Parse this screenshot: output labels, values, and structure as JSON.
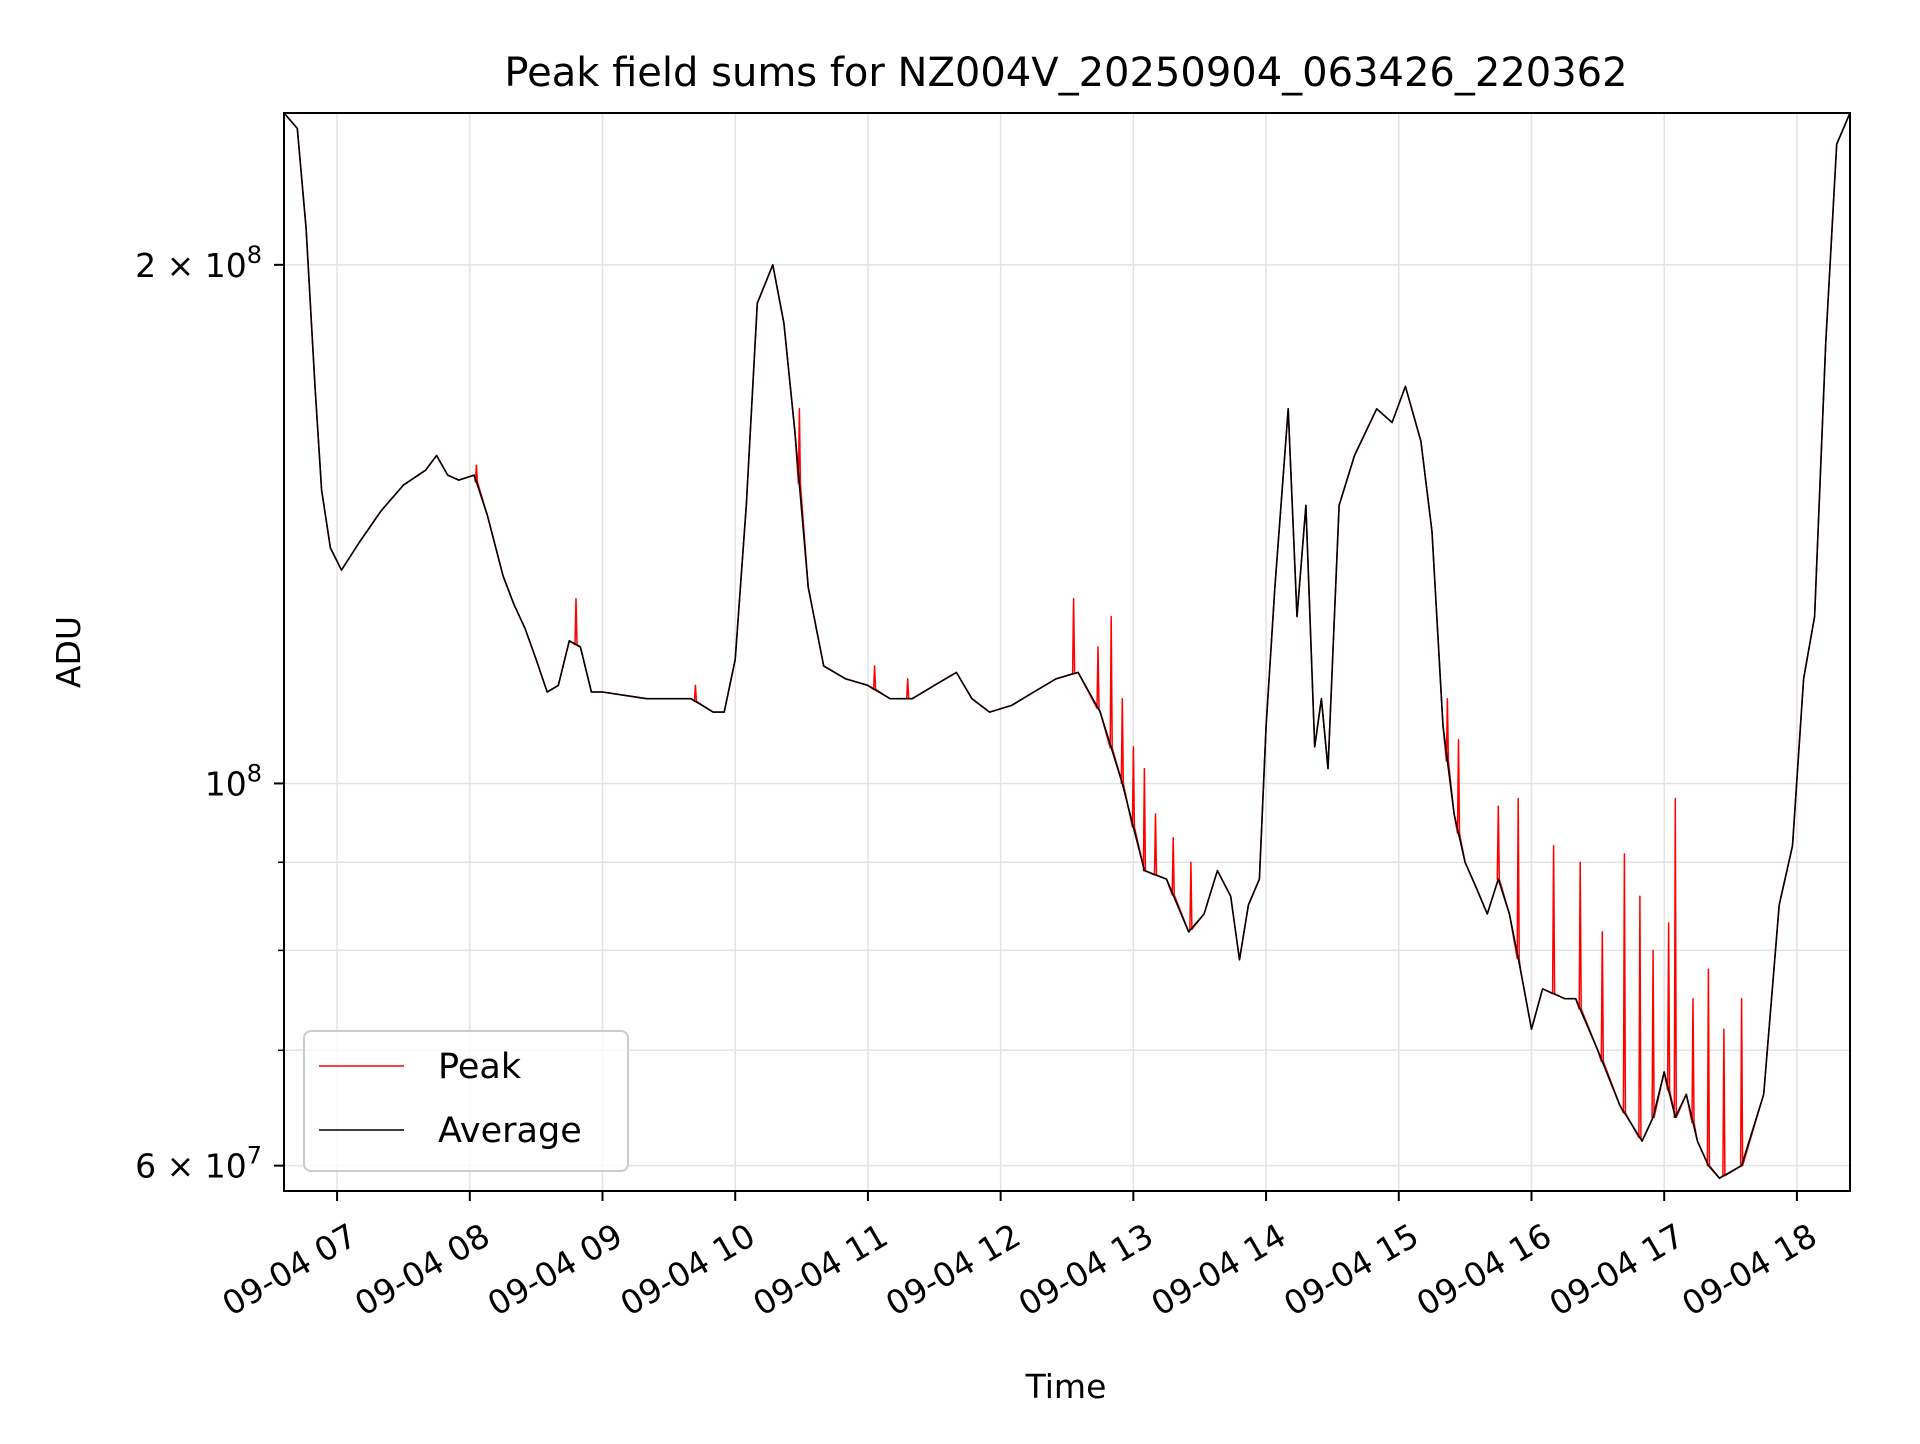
{
  "chart_data": {
    "type": "line",
    "title": "Peak field sums for NZ004V_20250904_063426_220362",
    "xlabel": "Time",
    "ylabel": "ADU",
    "y_scale": "log",
    "ylim": [
      58000000,
      245000000
    ],
    "xlim": [
      "2025-09-04T06:36",
      "2025-09-04T18:24"
    ],
    "grid": true,
    "legend_position": "lower left",
    "x_ticks": [
      {
        "t": "2025-09-04T07:00",
        "label": "09-04 07"
      },
      {
        "t": "2025-09-04T08:00",
        "label": "09-04 08"
      },
      {
        "t": "2025-09-04T09:00",
        "label": "09-04 09"
      },
      {
        "t": "2025-09-04T10:00",
        "label": "09-04 10"
      },
      {
        "t": "2025-09-04T11:00",
        "label": "09-04 11"
      },
      {
        "t": "2025-09-04T12:00",
        "label": "09-04 12"
      },
      {
        "t": "2025-09-04T13:00",
        "label": "09-04 13"
      },
      {
        "t": "2025-09-04T14:00",
        "label": "09-04 14"
      },
      {
        "t": "2025-09-04T15:00",
        "label": "09-04 15"
      },
      {
        "t": "2025-09-04T16:00",
        "label": "09-04 16"
      },
      {
        "t": "2025-09-04T17:00",
        "label": "09-04 17"
      },
      {
        "t": "2025-09-04T18:00",
        "label": "09-04 18"
      }
    ],
    "y_ticks_major": [
      {
        "value": 60000000,
        "label": "6 × 10^7",
        "mantissa": "6 × 10",
        "exp": "7"
      },
      {
        "value": 100000000,
        "label": "10^8",
        "mantissa": "10",
        "exp": "8"
      },
      {
        "value": 200000000,
        "label": "2 × 10^8",
        "mantissa": "2 × 10",
        "exp": "8"
      }
    ],
    "y_ticks_minor": [
      70000000,
      80000000,
      90000000
    ],
    "series": [
      {
        "name": "Average",
        "color": "#000000",
        "points": [
          [
            "2025-09-04T06:36",
            245000000
          ],
          [
            "2025-09-04T06:42",
            240000000
          ],
          [
            "2025-09-04T06:46",
            210000000
          ],
          [
            "2025-09-04T06:50",
            170000000
          ],
          [
            "2025-09-04T06:53",
            148000000
          ],
          [
            "2025-09-04T06:57",
            137000000
          ],
          [
            "2025-09-04T07:02",
            133000000
          ],
          [
            "2025-09-04T07:10",
            138000000
          ],
          [
            "2025-09-04T07:20",
            144000000
          ],
          [
            "2025-09-04T07:30",
            149000000
          ],
          [
            "2025-09-04T07:40",
            152000000
          ],
          [
            "2025-09-04T07:45",
            155000000
          ],
          [
            "2025-09-04T07:50",
            151000000
          ],
          [
            "2025-09-04T07:55",
            150000000
          ],
          [
            "2025-09-04T08:02",
            151000000
          ],
          [
            "2025-09-04T08:08",
            143000000
          ],
          [
            "2025-09-04T08:15",
            132000000
          ],
          [
            "2025-09-04T08:20",
            127000000
          ],
          [
            "2025-09-04T08:25",
            123000000
          ],
          [
            "2025-09-04T08:30",
            118000000
          ],
          [
            "2025-09-04T08:35",
            113000000
          ],
          [
            "2025-09-04T08:40",
            114000000
          ],
          [
            "2025-09-04T08:45",
            121000000
          ],
          [
            "2025-09-04T08:50",
            120000000
          ],
          [
            "2025-09-04T08:55",
            113000000
          ],
          [
            "2025-09-04T09:00",
            113000000
          ],
          [
            "2025-09-04T09:20",
            112000000
          ],
          [
            "2025-09-04T09:40",
            112000000
          ],
          [
            "2025-09-04T09:50",
            110000000
          ],
          [
            "2025-09-04T09:55",
            110000000
          ],
          [
            "2025-09-04T10:00",
            118000000
          ],
          [
            "2025-09-04T10:05",
            145000000
          ],
          [
            "2025-09-04T10:10",
            190000000
          ],
          [
            "2025-09-04T10:17",
            200000000
          ],
          [
            "2025-09-04T10:22",
            185000000
          ],
          [
            "2025-09-04T10:27",
            160000000
          ],
          [
            "2025-09-04T10:33",
            130000000
          ],
          [
            "2025-09-04T10:40",
            117000000
          ],
          [
            "2025-09-04T10:50",
            115000000
          ],
          [
            "2025-09-04T11:00",
            114000000
          ],
          [
            "2025-09-04T11:10",
            112000000
          ],
          [
            "2025-09-04T11:20",
            112000000
          ],
          [
            "2025-09-04T11:30",
            114000000
          ],
          [
            "2025-09-04T11:40",
            116000000
          ],
          [
            "2025-09-04T11:47",
            112000000
          ],
          [
            "2025-09-04T11:55",
            110000000
          ],
          [
            "2025-09-04T12:05",
            111000000
          ],
          [
            "2025-09-04T12:15",
            113000000
          ],
          [
            "2025-09-04T12:25",
            115000000
          ],
          [
            "2025-09-04T12:35",
            116000000
          ],
          [
            "2025-09-04T12:45",
            110000000
          ],
          [
            "2025-09-04T12:55",
            100000000
          ],
          [
            "2025-09-04T13:05",
            89000000
          ],
          [
            "2025-09-04T13:15",
            88000000
          ],
          [
            "2025-09-04T13:25",
            82000000
          ],
          [
            "2025-09-04T13:32",
            84000000
          ],
          [
            "2025-09-04T13:38",
            89000000
          ],
          [
            "2025-09-04T13:44",
            86000000
          ],
          [
            "2025-09-04T13:48",
            79000000
          ],
          [
            "2025-09-04T13:52",
            85000000
          ],
          [
            "2025-09-04T13:57",
            88000000
          ],
          [
            "2025-09-04T14:00",
            108000000
          ],
          [
            "2025-09-04T14:04",
            130000000
          ],
          [
            "2025-09-04T14:10",
            165000000
          ],
          [
            "2025-09-04T14:14",
            125000000
          ],
          [
            "2025-09-04T14:18",
            145000000
          ],
          [
            "2025-09-04T14:22",
            105000000
          ],
          [
            "2025-09-04T14:25",
            112000000
          ],
          [
            "2025-09-04T14:28",
            102000000
          ],
          [
            "2025-09-04T14:33",
            145000000
          ],
          [
            "2025-09-04T14:40",
            155000000
          ],
          [
            "2025-09-04T14:50",
            165000000
          ],
          [
            "2025-09-04T14:57",
            162000000
          ],
          [
            "2025-09-04T15:03",
            170000000
          ],
          [
            "2025-09-04T15:10",
            158000000
          ],
          [
            "2025-09-04T15:15",
            140000000
          ],
          [
            "2025-09-04T15:20",
            108000000
          ],
          [
            "2025-09-04T15:25",
            96000000
          ],
          [
            "2025-09-04T15:30",
            90000000
          ],
          [
            "2025-09-04T15:35",
            87000000
          ],
          [
            "2025-09-04T15:40",
            84000000
          ],
          [
            "2025-09-04T15:45",
            88000000
          ],
          [
            "2025-09-04T15:50",
            84000000
          ],
          [
            "2025-09-04T15:55",
            78000000
          ],
          [
            "2025-09-04T16:00",
            72000000
          ],
          [
            "2025-09-04T16:05",
            76000000
          ],
          [
            "2025-09-04T16:15",
            75000000
          ],
          [
            "2025-09-04T16:20",
            75000000
          ],
          [
            "2025-09-04T16:30",
            70000000
          ],
          [
            "2025-09-04T16:40",
            65000000
          ],
          [
            "2025-09-04T16:50",
            62000000
          ],
          [
            "2025-09-04T16:55",
            64000000
          ],
          [
            "2025-09-04T17:00",
            68000000
          ],
          [
            "2025-09-04T17:05",
            64000000
          ],
          [
            "2025-09-04T17:10",
            66000000
          ],
          [
            "2025-09-04T17:15",
            62000000
          ],
          [
            "2025-09-04T17:20",
            60000000
          ],
          [
            "2025-09-04T17:25",
            59000000
          ],
          [
            "2025-09-04T17:35",
            60000000
          ],
          [
            "2025-09-04T17:45",
            66000000
          ],
          [
            "2025-09-04T17:52",
            85000000
          ],
          [
            "2025-09-04T17:58",
            92000000
          ],
          [
            "2025-09-04T18:03",
            115000000
          ],
          [
            "2025-09-04T18:08",
            125000000
          ],
          [
            "2025-09-04T18:13",
            180000000
          ],
          [
            "2025-09-04T18:18",
            235000000
          ],
          [
            "2025-09-04T18:24",
            245000000
          ]
        ]
      },
      {
        "name": "Peak",
        "color": "#ff0000",
        "spikes": [
          [
            "2025-09-04T08:03",
            153000000
          ],
          [
            "2025-09-04T08:48",
            128000000
          ],
          [
            "2025-09-04T09:42",
            114000000
          ],
          [
            "2025-09-04T10:29",
            165000000
          ],
          [
            "2025-09-04T11:03",
            117000000
          ],
          [
            "2025-09-04T11:18",
            115000000
          ],
          [
            "2025-09-04T12:33",
            128000000
          ],
          [
            "2025-09-04T12:44",
            120000000
          ],
          [
            "2025-09-04T12:50",
            125000000
          ],
          [
            "2025-09-04T12:55",
            112000000
          ],
          [
            "2025-09-04T13:00",
            105000000
          ],
          [
            "2025-09-04T13:05",
            102000000
          ],
          [
            "2025-09-04T13:10",
            96000000
          ],
          [
            "2025-09-04T13:18",
            93000000
          ],
          [
            "2025-09-04T13:26",
            90000000
          ],
          [
            "2025-09-04T15:22",
            112000000
          ],
          [
            "2025-09-04T15:27",
            106000000
          ],
          [
            "2025-09-04T15:45",
            97000000
          ],
          [
            "2025-09-04T15:54",
            98000000
          ],
          [
            "2025-09-04T16:10",
            92000000
          ],
          [
            "2025-09-04T16:22",
            90000000
          ],
          [
            "2025-09-04T16:32",
            82000000
          ],
          [
            "2025-09-04T16:42",
            91000000
          ],
          [
            "2025-09-04T16:49",
            86000000
          ],
          [
            "2025-09-04T16:55",
            80000000
          ],
          [
            "2025-09-04T17:02",
            83000000
          ],
          [
            "2025-09-04T17:05",
            98000000
          ],
          [
            "2025-09-04T17:13",
            75000000
          ],
          [
            "2025-09-04T17:20",
            78000000
          ],
          [
            "2025-09-04T17:27",
            72000000
          ],
          [
            "2025-09-04T17:35",
            75000000
          ]
        ]
      }
    ]
  }
}
